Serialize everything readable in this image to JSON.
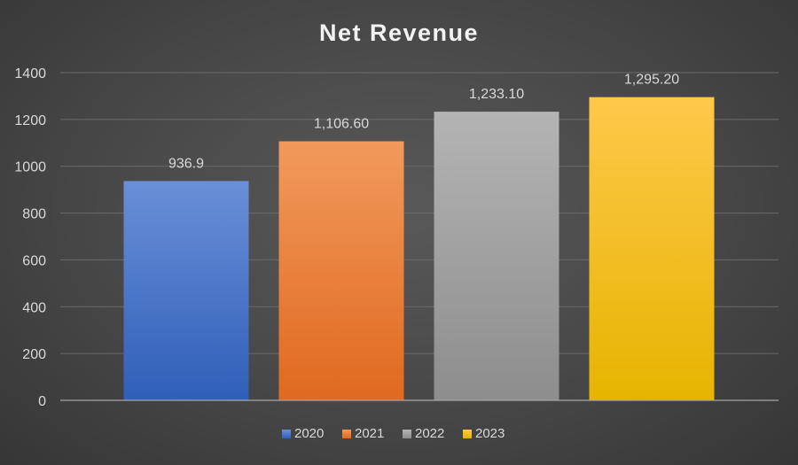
{
  "chart_data": {
    "type": "bar",
    "title": "Net Revenue",
    "categories": [
      "2020",
      "2021",
      "2022",
      "2023"
    ],
    "values": [
      936.9,
      1106.6,
      1233.1,
      1295.2
    ],
    "data_labels": [
      "936.9",
      "1,106.60",
      "1,233.10",
      "1,295.20"
    ],
    "xlabel": "",
    "ylabel": "",
    "ylim": [
      0,
      1400
    ],
    "yticks": [
      0,
      200,
      400,
      600,
      800,
      1000,
      1200,
      1400
    ],
    "grid": true,
    "legend_position": "bottom",
    "legend": [
      "2020",
      "2021",
      "2022",
      "2023"
    ],
    "colors": [
      {
        "top": "#6a8fd8",
        "bottom": "#2f5fb8"
      },
      {
        "top": "#f19a5c",
        "bottom": "#e0691f"
      },
      {
        "top": "#b4b4b4",
        "bottom": "#8d8d8d"
      },
      {
        "top": "#ffc84a",
        "bottom": "#e6b400"
      }
    ]
  }
}
